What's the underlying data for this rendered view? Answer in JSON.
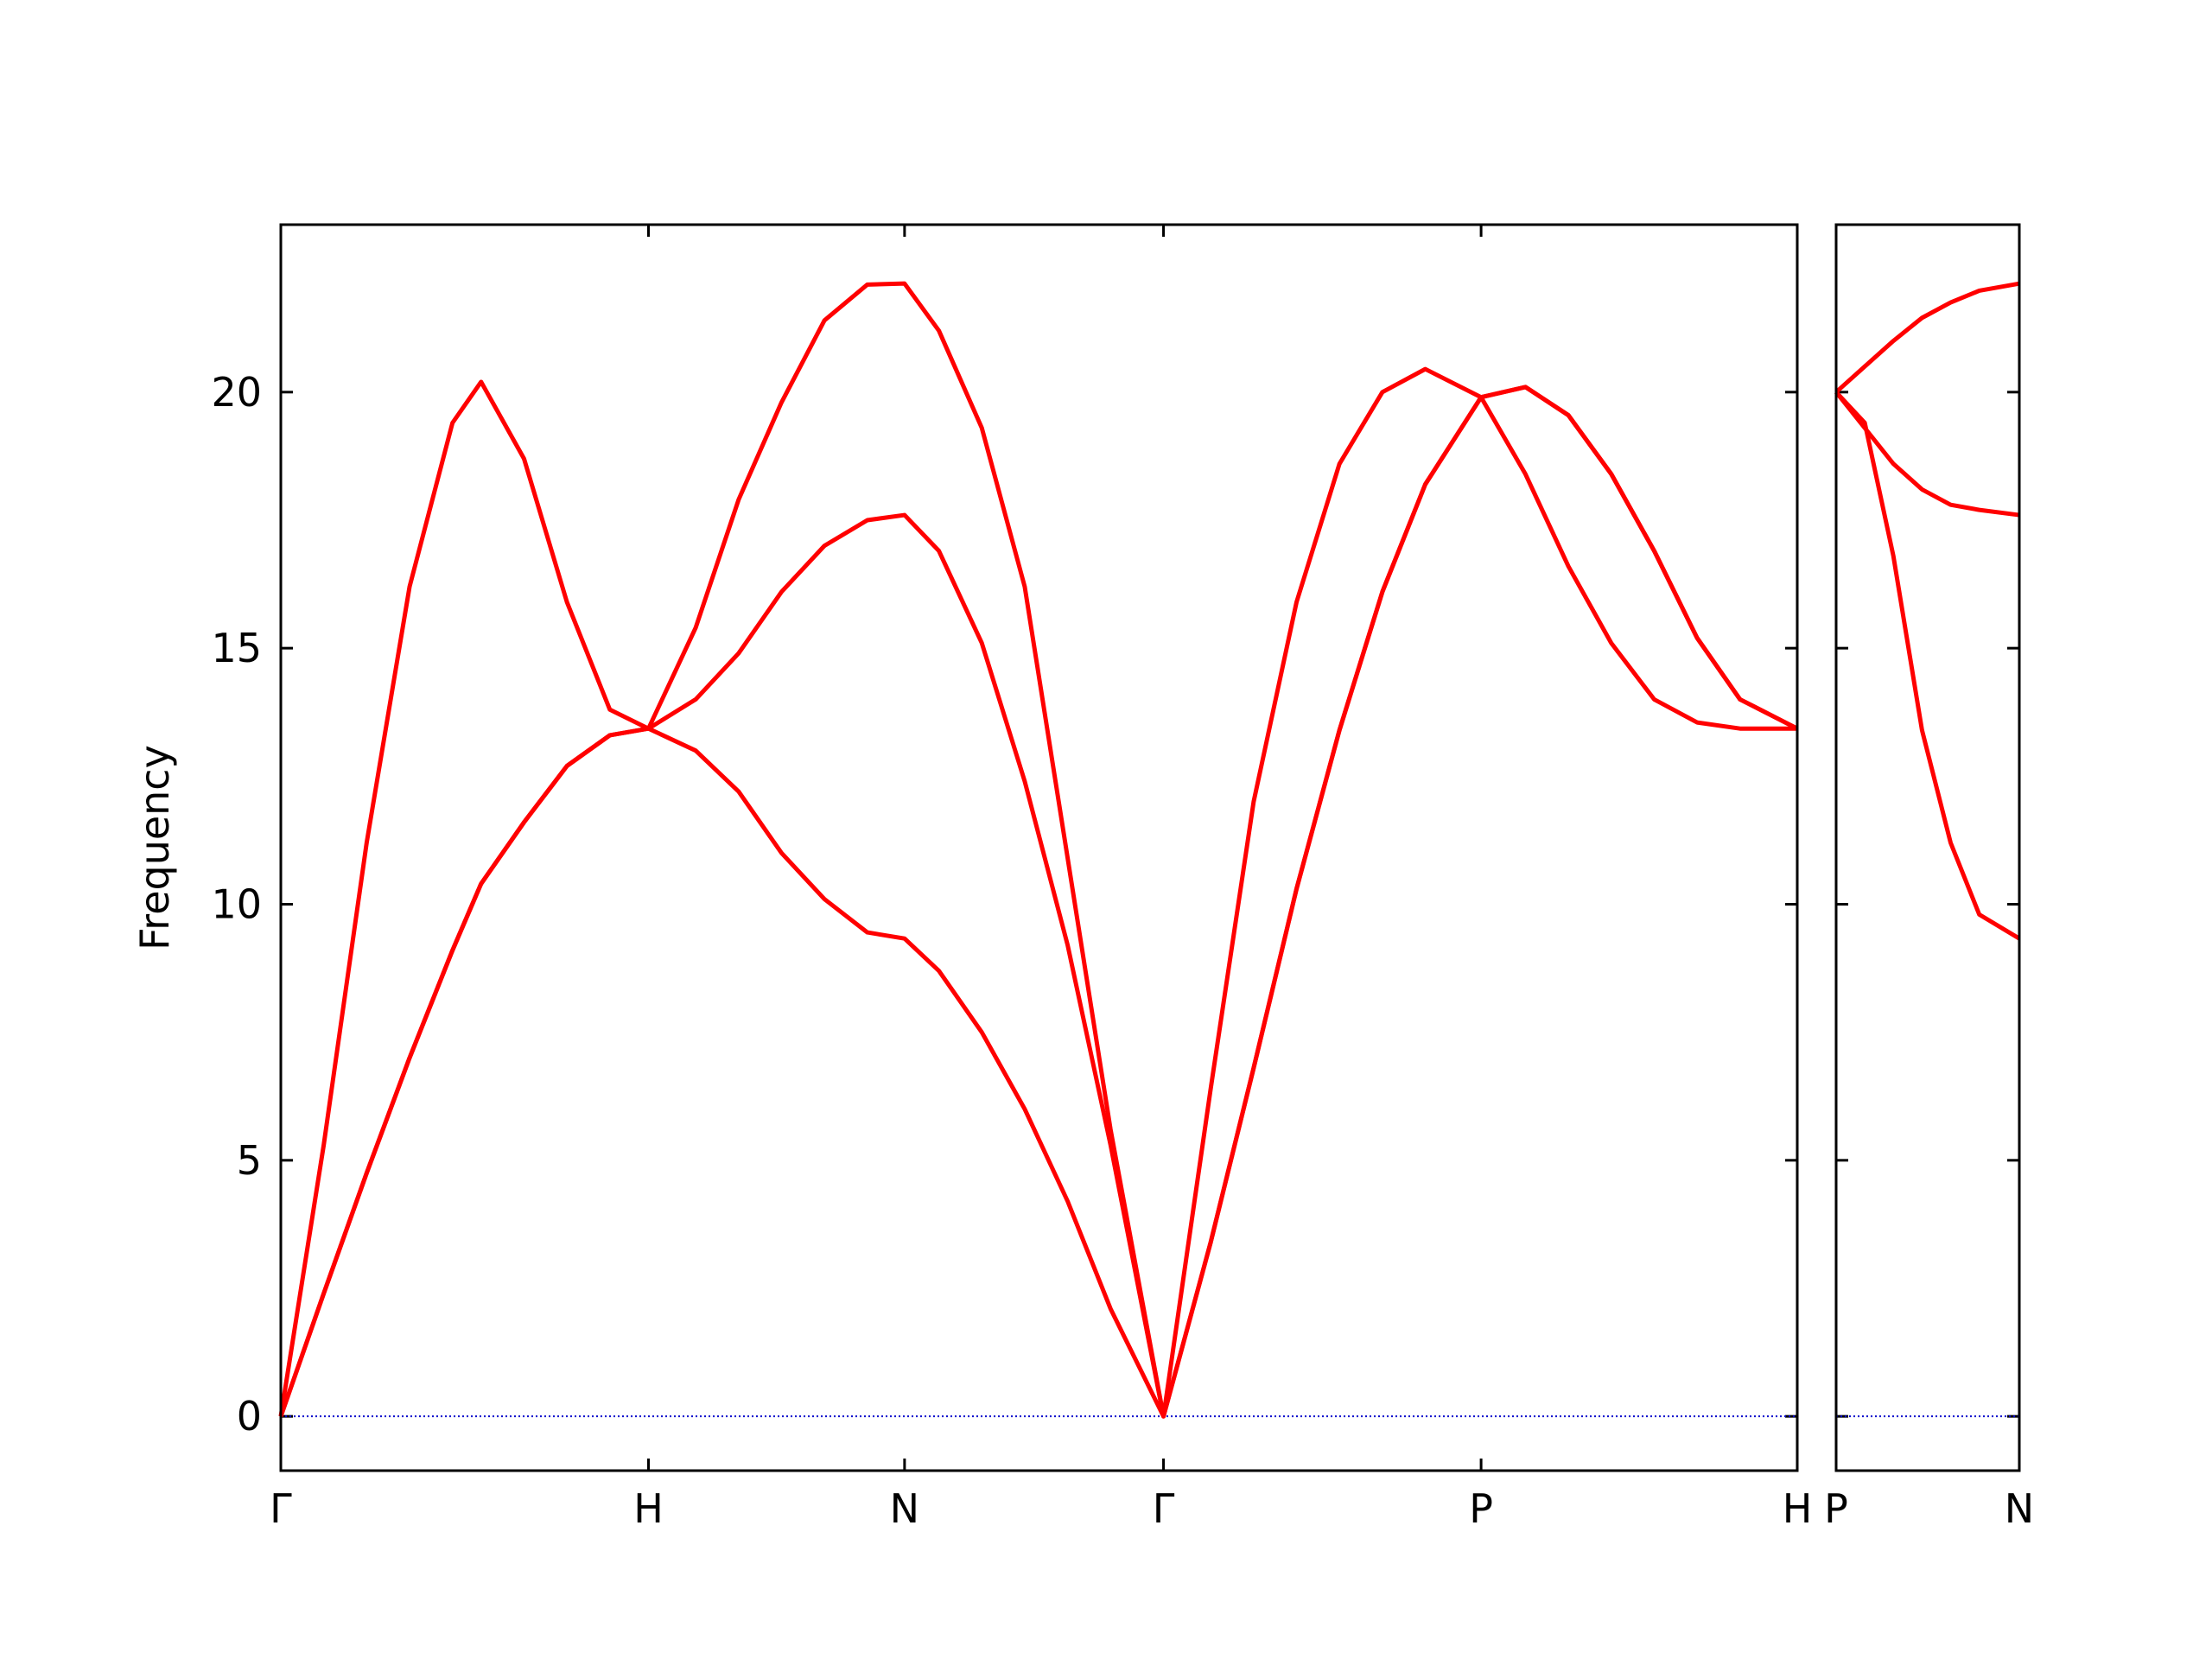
{
  "chart_data": [
    {
      "type": "line",
      "ylabel": "Frequency",
      "x": [
        0,
        0.3,
        0.6,
        0.9,
        1.2,
        1.4,
        1.7,
        2.0,
        2.3,
        2.57,
        2.9,
        3.2,
        3.5,
        3.8,
        4.1,
        4.36,
        4.6,
        4.9,
        5.2,
        5.5,
        5.8,
        6.17,
        6.5,
        6.8,
        7.1,
        7.4,
        7.7,
        8.0,
        8.39,
        8.7,
        9.0,
        9.3,
        9.6,
        9.9,
        10.2,
        10.6
      ],
      "series": [
        {
          "color": "#ff0000",
          "values": [
            0,
            5.3,
            11.2,
            16.2,
            19.4,
            20.2,
            18.7,
            15.9,
            13.8,
            13.43,
            15.4,
            17.9,
            19.8,
            21.4,
            22.1,
            22.12,
            21.2,
            19.3,
            16.2,
            10.9,
            5.6,
            0,
            6.4,
            12.0,
            15.9,
            18.6,
            20.0,
            20.45,
            19.9,
            18.4,
            16.6,
            15.1,
            14.0,
            13.55,
            13.43,
            13.43
          ]
        },
        {
          "color": "#ff0000",
          "values": [
            0,
            2.4,
            4.75,
            7.0,
            9.1,
            10.4,
            11.6,
            12.7,
            13.3,
            13.43,
            14.0,
            14.9,
            16.1,
            17.0,
            17.5,
            17.6,
            16.9,
            15.1,
            12.4,
            9.2,
            5.3,
            0,
            3.4,
            6.8,
            10.3,
            13.4,
            16.1,
            18.2,
            19.9,
            20.1,
            19.55,
            18.4,
            16.9,
            15.2,
            14.0,
            13.43
          ]
        },
        {
          "color": "#ff0000",
          "values": [
            0,
            2.4,
            4.75,
            7.0,
            9.1,
            10.4,
            11.6,
            12.7,
            13.3,
            13.43,
            13.0,
            12.2,
            11.0,
            10.1,
            9.45,
            9.33,
            8.7,
            7.5,
            6.0,
            4.2,
            2.1,
            0,
            3.4,
            6.8,
            10.3,
            13.4,
            16.1,
            18.2,
            19.9,
            20.1,
            19.55,
            18.4,
            16.9,
            15.2,
            14.0,
            13.43
          ]
        }
      ],
      "xlim": [
        0,
        10.6
      ],
      "xticks": [
        {
          "value": 0,
          "label": "Γ"
        },
        {
          "value": 2.57,
          "label": "H"
        },
        {
          "value": 4.36,
          "label": "N"
        },
        {
          "value": 6.17,
          "label": "Γ"
        },
        {
          "value": 8.39,
          "label": "P"
        },
        {
          "value": 10.6,
          "label": "H"
        }
      ],
      "ylim": [
        -1.06,
        23.27
      ],
      "yticks": [
        0,
        5,
        10,
        15,
        20
      ],
      "ytick_labels": true,
      "zero_line": true,
      "zero_line_color": "#0000cc"
    },
    {
      "type": "line",
      "x": [
        0,
        0.2,
        0.4,
        0.6,
        0.8,
        1.0,
        1.28
      ],
      "series": [
        {
          "color": "#ff0000",
          "values": [
            20.0,
            20.5,
            21.0,
            21.45,
            21.75,
            21.98,
            22.12
          ]
        },
        {
          "color": "#ff0000",
          "values": [
            20.0,
            19.3,
            18.6,
            18.1,
            17.8,
            17.7,
            17.6
          ]
        },
        {
          "color": "#ff0000",
          "values": [
            20.0,
            19.4,
            16.8,
            13.4,
            11.2,
            9.8,
            9.33
          ]
        }
      ],
      "xlim": [
        0,
        1.28
      ],
      "xticks": [
        {
          "value": 0,
          "label": "P"
        },
        {
          "value": 1.28,
          "label": "N"
        }
      ],
      "ylim": [
        -1.06,
        23.27
      ],
      "yticks": [
        0,
        5,
        10,
        15,
        20
      ],
      "ytick_labels": false,
      "zero_line": true,
      "zero_line_color": "#0000cc"
    }
  ]
}
